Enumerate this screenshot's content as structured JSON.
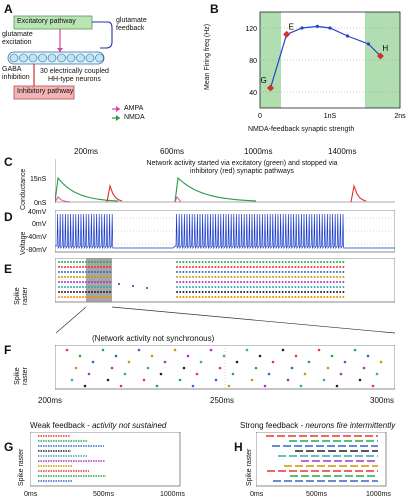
{
  "panels": {
    "A": "A",
    "B": "B",
    "C": "C",
    "D": "D",
    "E": "E",
    "F": "F",
    "G": "G",
    "H": "H"
  },
  "panel_a": {
    "excitatory_pathway": "Excitatory pathway",
    "inhibitory_pathway": "Inhibitory pathway",
    "glutamate_excitation": "glutamate\nexcitation",
    "glutamate_feedback": "glutamate\nfeedback",
    "gaba_inhibition": "GABA\ninhibition",
    "neurons_caption": "30 electrically coupled\nHH-type neurons",
    "legend_ampa": "AMPA",
    "legend_nmda": "NMDA",
    "colors": {
      "ampa": "#e040a0",
      "nmda": "#2a9a4a",
      "excitatory_box": "#b9e4b4",
      "inhibitory_box": "#f2b4b4",
      "neuron": "#bfe6f5"
    }
  },
  "panel_b": {
    "ylabel": "Mean Firing freq (Hz)",
    "xlabel": "NMDA-feedback synaptic strength",
    "point_labels": [
      "G",
      "E",
      "H"
    ],
    "yticks": [
      "40",
      "80",
      "120"
    ],
    "xticks": [
      "0",
      "1nS",
      "2ns"
    ]
  },
  "panel_c": {
    "ylabel": "Conductance",
    "time_ticks": [
      "200ms",
      "600ms",
      "1000ms",
      "1400ms"
    ],
    "yticks": [
      "15nS",
      "0nS"
    ],
    "annotation": "Network activity started via excitatory (green) and stopped via\ninhibitory (red) synaptic pathways"
  },
  "panel_d": {
    "ylabel": "Voltage",
    "yticks": [
      "40mV",
      "0mV",
      "-40mV",
      "-80mV"
    ]
  },
  "panel_e": {
    "ylabel": "Spike\nraster"
  },
  "panel_f": {
    "ylabel": "Spike\nraster",
    "annotation": "(Network activity not synchronous)",
    "xticks": [
      "200ms",
      "250ms",
      "300ms"
    ]
  },
  "panel_g": {
    "title_plain": "Weak feedback - ",
    "title_italic": "activity not sustained",
    "ylabel": "Spike raster",
    "xticks": [
      "0ms",
      "500ms",
      "1000ms"
    ]
  },
  "panel_h": {
    "title_plain": "Strong feedback - ",
    "title_italic": "neurons fire intermittently",
    "ylabel": "Spike raster",
    "xticks": [
      "0ms",
      "500ms",
      "1000ms"
    ]
  },
  "chart_data": [
    {
      "type": "line",
      "panel": "B",
      "title": "",
      "xlabel": "NMDA-feedback synaptic strength",
      "ylabel": "Mean Firing freq (Hz)",
      "x": [
        0.15,
        0.38,
        0.6,
        0.82,
        1.0,
        1.25,
        1.55,
        1.72
      ],
      "y": [
        45,
        112,
        120,
        122,
        120,
        110,
        100,
        85
      ],
      "highlighted": [
        {
          "label": "G",
          "x": 0.15,
          "y": 45
        },
        {
          "label": "E",
          "x": 0.38,
          "y": 112
        },
        {
          "label": "H",
          "x": 1.72,
          "y": 85
        }
      ],
      "xlim": [
        0,
        2
      ],
      "ylim": [
        20,
        140
      ],
      "shaded_regions": [
        [
          0,
          0.3
        ],
        [
          1.5,
          2
        ]
      ]
    }
  ]
}
